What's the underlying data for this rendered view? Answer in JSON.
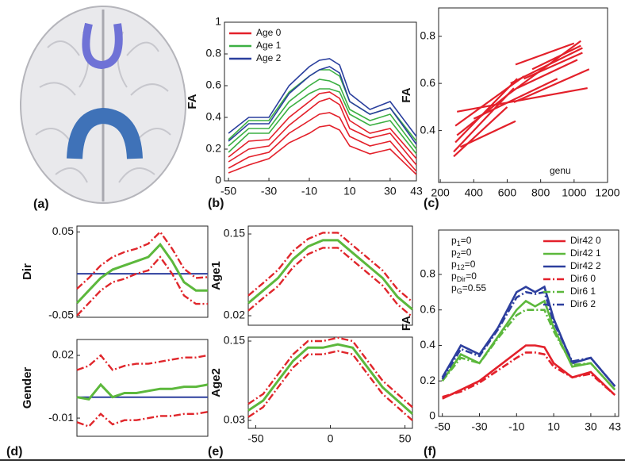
{
  "image_panel": {
    "label": "(a)"
  },
  "chart_data": [
    {
      "type": "line",
      "panel_label": "(b)",
      "ylabel": "FA",
      "legend": "upper left",
      "x": [
        -50,
        -40,
        -30,
        -20,
        -10,
        -5,
        0,
        5,
        10,
        20,
        30,
        43
      ],
      "xlim": [
        -52,
        43
      ],
      "xticks": [
        -50,
        -30,
        -10,
        10,
        30,
        43
      ],
      "ylim": [
        0,
        1
      ],
      "yticks": [
        0,
        0.2,
        0.4,
        0.6,
        0.8,
        1
      ],
      "series": [
        {
          "name": "Age 0",
          "color": "#e3202a",
          "curves": [
            [
              0.08,
              0.15,
              0.18,
              0.3,
              0.38,
              0.42,
              0.43,
              0.4,
              0.28,
              0.22,
              0.25,
              0.06
            ],
            [
              0.12,
              0.2,
              0.22,
              0.35,
              0.45,
              0.5,
              0.52,
              0.48,
              0.33,
              0.27,
              0.3,
              0.1
            ],
            [
              0.05,
              0.1,
              0.14,
              0.24,
              0.3,
              0.34,
              0.35,
              0.32,
              0.22,
              0.17,
              0.2,
              0.04
            ],
            [
              0.15,
              0.25,
              0.26,
              0.4,
              0.5,
              0.55,
              0.56,
              0.52,
              0.38,
              0.3,
              0.33,
              0.14
            ]
          ]
        },
        {
          "name": "Age 1",
          "color": "#3cb043",
          "curves": [
            [
              0.22,
              0.33,
              0.33,
              0.5,
              0.6,
              0.64,
              0.63,
              0.6,
              0.45,
              0.38,
              0.42,
              0.2
            ],
            [
              0.26,
              0.38,
              0.38,
              0.56,
              0.66,
              0.7,
              0.7,
              0.66,
              0.5,
              0.42,
              0.46,
              0.25
            ],
            [
              0.18,
              0.3,
              0.3,
              0.46,
              0.55,
              0.58,
              0.58,
              0.56,
              0.42,
              0.35,
              0.38,
              0.17
            ]
          ]
        },
        {
          "name": "Age 2",
          "color": "#2a3f9e",
          "curves": [
            [
              0.25,
              0.36,
              0.36,
              0.55,
              0.66,
              0.7,
              0.72,
              0.68,
              0.5,
              0.42,
              0.46,
              0.23
            ],
            [
              0.3,
              0.4,
              0.4,
              0.6,
              0.72,
              0.76,
              0.77,
              0.73,
              0.55,
              0.45,
              0.5,
              0.28
            ]
          ]
        }
      ]
    },
    {
      "type": "line",
      "panel_label": "(c)",
      "ylabel": "FA",
      "annotation": "genu",
      "xlim": [
        190,
        1200
      ],
      "xticks": [
        200,
        400,
        600,
        800,
        1000,
        1200
      ],
      "ylim": [
        0.18,
        0.92
      ],
      "yticks": [
        0.4,
        0.6,
        0.8
      ],
      "series": [
        {
          "color": "#e3202a",
          "segments": [
            {
              "x": [
                280,
                640
              ],
              "values": [
                0.31,
                0.58
              ]
            },
            {
              "x": [
                290,
                660
              ],
              "values": [
                0.35,
                0.62
              ]
            },
            {
              "x": [
                300,
                600
              ],
              "values": [
                0.38,
                0.55
              ]
            },
            {
              "x": [
                290,
                700
              ],
              "values": [
                0.42,
                0.63
              ]
            },
            {
              "x": [
                300,
                1080
              ],
              "values": [
                0.48,
                0.58
              ]
            },
            {
              "x": [
                320,
                650
              ],
              "values": [
                0.33,
                0.44
              ]
            },
            {
              "x": [
                600,
                1040
              ],
              "values": [
                0.55,
                0.78
              ]
            },
            {
              "x": [
                620,
                1050
              ],
              "values": [
                0.6,
                0.75
              ]
            },
            {
              "x": [
                650,
                1000
              ],
              "values": [
                0.68,
                0.77
              ]
            },
            {
              "x": [
                640,
                1090
              ],
              "values": [
                0.52,
                0.66
              ]
            },
            {
              "x": [
                700,
                1050
              ],
              "values": [
                0.62,
                0.73
              ]
            },
            {
              "x": [
                280,
                600
              ],
              "values": [
                0.29,
                0.5
              ]
            },
            {
              "x": [
                400,
                900
              ],
              "values": [
                0.45,
                0.62
              ]
            },
            {
              "x": [
                660,
                1020
              ],
              "values": [
                0.58,
                0.7
              ]
            },
            {
              "x": [
                750,
                1040
              ],
              "values": [
                0.66,
                0.76
              ]
            }
          ]
        }
      ]
    },
    {
      "type": "band",
      "ylabel": "Dir",
      "colors": {
        "estimate": "#5cb83c",
        "band": "#e0262b",
        "ref": "#2d3f9e"
      },
      "x": [
        -55,
        -45,
        -35,
        -25,
        -15,
        -5,
        5,
        15,
        25,
        35,
        45,
        55
      ],
      "xlim": [
        -55,
        55
      ],
      "ylim": [
        -0.052,
        0.057
      ],
      "yticks": [
        -0.05,
        0.05
      ],
      "ref_line": 0,
      "estimate": [
        -0.035,
        -0.02,
        -0.005,
        0.005,
        0.01,
        0.015,
        0.02,
        0.035,
        0.015,
        -0.01,
        -0.02,
        -0.02
      ],
      "upper": [
        -0.018,
        -0.005,
        0.01,
        0.02,
        0.026,
        0.03,
        0.036,
        0.05,
        0.03,
        0.006,
        -0.005,
        -0.004
      ],
      "lower": [
        -0.05,
        -0.035,
        -0.02,
        -0.01,
        -0.006,
        0,
        0.004,
        0.02,
        0,
        -0.026,
        -0.036,
        -0.036
      ]
    },
    {
      "type": "band",
      "panel_label": "(d)",
      "ylabel": "Gender",
      "colors": {
        "estimate": "#5cb83c",
        "band": "#e0262b",
        "ref": "#2d3f9e"
      },
      "x": [
        -55,
        -45,
        -35,
        -25,
        -15,
        -5,
        5,
        15,
        25,
        35,
        45,
        55
      ],
      "xlim": [
        -55,
        55
      ],
      "ylim": [
        -0.0187,
        0.0276
      ],
      "yticks": [
        -0.01,
        0.02
      ],
      "ref_line": 0,
      "estimate": [
        0,
        -0.001,
        0.006,
        0,
        0.002,
        0.002,
        0.003,
        0.004,
        0.004,
        0.005,
        0.005,
        0.006
      ],
      "upper": [
        0.013,
        0.015,
        0.02,
        0.013,
        0.015,
        0.016,
        0.016,
        0.017,
        0.018,
        0.019,
        0.019,
        0.02
      ],
      "lower": [
        -0.012,
        -0.014,
        -0.008,
        -0.013,
        -0.011,
        -0.011,
        -0.01,
        -0.009,
        -0.009,
        -0.008,
        -0.008,
        -0.007
      ]
    },
    {
      "type": "band",
      "ylabel": "Age1",
      "colors": {
        "estimate": "#5cb83c",
        "band": "#e0262b"
      },
      "x": [
        -55,
        -45,
        -35,
        -25,
        -15,
        -5,
        5,
        15,
        25,
        35,
        45,
        55
      ],
      "xlim": [
        -55,
        55
      ],
      "ylim": [
        0.0049,
        0.1626
      ],
      "yticks": [
        0.02,
        0.15
      ],
      "estimate": [
        0.04,
        0.06,
        0.08,
        0.11,
        0.13,
        0.14,
        0.14,
        0.12,
        0.1,
        0.08,
        0.05,
        0.03
      ],
      "upper": [
        0.052,
        0.072,
        0.093,
        0.123,
        0.142,
        0.152,
        0.152,
        0.132,
        0.112,
        0.092,
        0.062,
        0.042
      ],
      "lower": [
        0.028,
        0.048,
        0.067,
        0.097,
        0.118,
        0.128,
        0.128,
        0.108,
        0.088,
        0.068,
        0.038,
        0.018
      ]
    },
    {
      "type": "band",
      "panel_label": "(e)",
      "ylabel": "Age2",
      "colors": {
        "estimate": "#5cb83c",
        "band": "#e0262b"
      },
      "x": [
        -55,
        -45,
        -35,
        -25,
        -15,
        -5,
        5,
        15,
        25,
        35,
        45,
        55
      ],
      "xlim": [
        -55,
        55
      ],
      "ylim": [
        0.018,
        0.156
      ],
      "yticks": [
        0.03,
        0.15
      ],
      "xticks": [
        -50,
        0,
        50
      ],
      "estimate": [
        0.045,
        0.06,
        0.09,
        0.12,
        0.14,
        0.14,
        0.145,
        0.14,
        0.11,
        0.08,
        0.06,
        0.04
      ],
      "upper": [
        0.055,
        0.07,
        0.1,
        0.13,
        0.15,
        0.15,
        0.155,
        0.15,
        0.12,
        0.09,
        0.07,
        0.05
      ],
      "lower": [
        0.035,
        0.05,
        0.08,
        0.11,
        0.13,
        0.13,
        0.135,
        0.13,
        0.1,
        0.07,
        0.05,
        0.03
      ]
    },
    {
      "type": "line",
      "panel_label": "(f)",
      "ylabel": "FA",
      "legend": "upper right",
      "x": [
        -50,
        -40,
        -30,
        -20,
        -10,
        -5,
        0,
        5,
        10,
        20,
        30,
        43
      ],
      "xlim": [
        -52,
        45
      ],
      "xticks": [
        -50,
        -30,
        -10,
        10,
        30,
        43
      ],
      "ylim": [
        0,
        1.05
      ],
      "yticks": [
        0,
        0.2,
        0.4,
        0.6,
        0.8
      ],
      "annotations": [
        {
          "base": "p",
          "sub": "1",
          "text": "=0"
        },
        {
          "base": "p",
          "sub": "2",
          "text": "=0"
        },
        {
          "base": "p",
          "sub": "12",
          "text": "=0"
        },
        {
          "base": "p",
          "sub": "Dir",
          "text": "=0"
        },
        {
          "base": "p",
          "sub": "G",
          "text": "=0.55"
        }
      ],
      "series": [
        {
          "name": "Dir42 0",
          "color": "#e3202a",
          "style": "solid",
          "values": [
            0.1,
            0.15,
            0.2,
            0.28,
            0.36,
            0.4,
            0.4,
            0.39,
            0.3,
            0.22,
            0.25,
            0.12
          ]
        },
        {
          "name": "Dir42 1",
          "color": "#5cb83c",
          "style": "solid",
          "values": [
            0.2,
            0.35,
            0.3,
            0.45,
            0.6,
            0.65,
            0.62,
            0.65,
            0.5,
            0.28,
            0.3,
            0.15
          ]
        },
        {
          "name": "Dir42 2",
          "color": "#2d3f9e",
          "style": "solid",
          "values": [
            0.22,
            0.4,
            0.35,
            0.5,
            0.7,
            0.73,
            0.7,
            0.73,
            0.55,
            0.3,
            0.33,
            0.17
          ]
        },
        {
          "name": "Dir6 0",
          "color": "#e3202a",
          "style": "dashdot",
          "values": [
            0.11,
            0.14,
            0.19,
            0.26,
            0.33,
            0.36,
            0.36,
            0.35,
            0.28,
            0.22,
            0.24,
            0.12
          ]
        },
        {
          "name": "Dir6 1",
          "color": "#5cb83c",
          "style": "dashdot",
          "values": [
            0.2,
            0.33,
            0.3,
            0.44,
            0.57,
            0.6,
            0.6,
            0.6,
            0.48,
            0.29,
            0.3,
            0.15
          ]
        },
        {
          "name": "Dir6 2",
          "color": "#2d3f9e",
          "style": "dashdot",
          "values": [
            0.21,
            0.38,
            0.34,
            0.49,
            0.67,
            0.7,
            0.69,
            0.7,
            0.53,
            0.31,
            0.33,
            0.17
          ]
        }
      ]
    }
  ]
}
